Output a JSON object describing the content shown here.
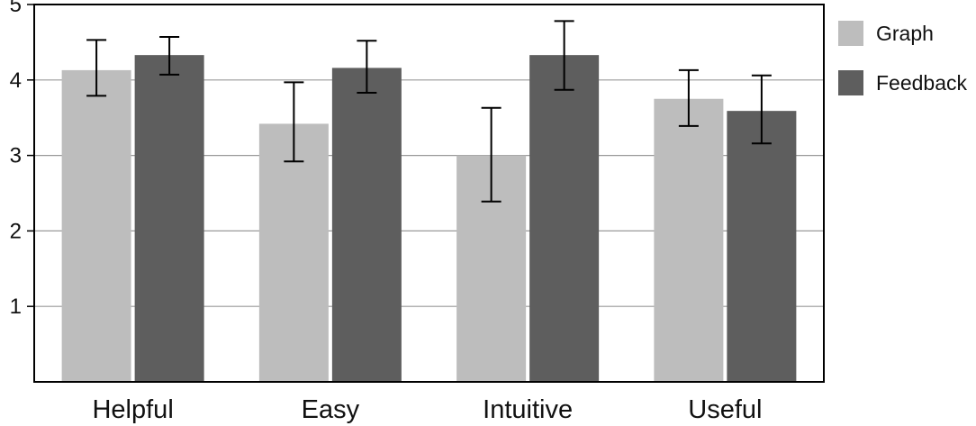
{
  "chart_data": {
    "type": "bar",
    "title": "",
    "xlabel": "",
    "ylabel": "",
    "categories": [
      "Helpful",
      "Easy",
      "Intuitive",
      "Useful"
    ],
    "ylim": [
      0,
      5
    ],
    "yticks": [
      1,
      2,
      3,
      4,
      5
    ],
    "grid": true,
    "legend_position": "right",
    "series": [
      {
        "name": "Graph",
        "color": "#bdbdbd",
        "values": [
          4.13,
          3.42,
          3.0,
          3.75
        ],
        "error_low": [
          3.79,
          2.92,
          2.39,
          3.39
        ],
        "error_high": [
          4.53,
          3.97,
          3.63,
          4.13
        ]
      },
      {
        "name": "Feedback",
        "color": "#5e5e5e",
        "values": [
          4.33,
          4.16,
          4.33,
          3.59
        ],
        "error_low": [
          4.07,
          3.83,
          3.87,
          3.16
        ],
        "error_high": [
          4.57,
          4.52,
          4.78,
          4.06
        ]
      }
    ]
  }
}
